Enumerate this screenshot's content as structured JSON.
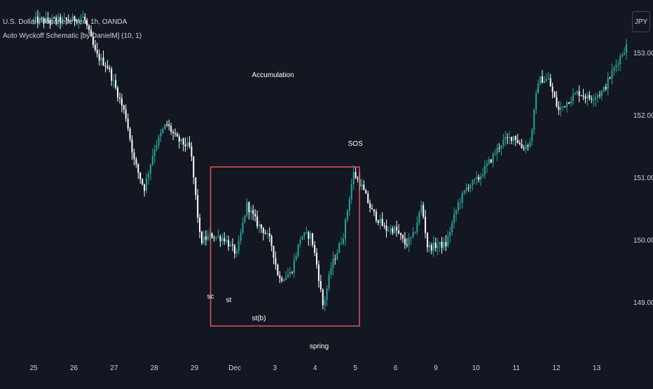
{
  "legend": {
    "symbol": "U.S. Dollar / Japanese Yen, 1h, OANDA",
    "indicator": "Auto Wyckoff Schematic [by DanielM] (10, 1)"
  },
  "currency_badge": "JPY",
  "colors": {
    "background": "#131722",
    "up": "#26a69a",
    "down": "#ffffff",
    "box": "#e05555",
    "text": "#d1d4dc"
  },
  "chart_data": {
    "type": "candlestick",
    "title": "U.S. Dollar / Japanese Yen, 1h, OANDA",
    "y_ticks": [
      153.0,
      152.0,
      151.0,
      150.0,
      149.0
    ],
    "y_tick_labels": [
      "153.000",
      "152.000",
      "151.000",
      "150.000",
      "149.000"
    ],
    "x_ticks": [
      "25",
      "26",
      "27",
      "28",
      "29",
      "Dec",
      "3",
      "4",
      "5",
      "6",
      "9",
      "10",
      "11",
      "12",
      "13"
    ],
    "trading_days": 15,
    "price_path": [
      [
        0.0,
        153.55
      ],
      [
        0.95,
        153.55
      ],
      [
        1.3,
        153.6
      ],
      [
        1.6,
        153.0
      ],
      [
        1.9,
        152.8
      ],
      [
        2.35,
        152.0
      ],
      [
        2.55,
        151.3
      ],
      [
        2.8,
        150.85
      ],
      [
        3.05,
        151.5
      ],
      [
        3.35,
        151.9
      ],
      [
        3.6,
        151.65
      ],
      [
        3.95,
        151.5
      ],
      [
        4.2,
        150.0
      ],
      [
        4.45,
        150.1
      ],
      [
        4.8,
        150.05
      ],
      [
        5.1,
        149.8
      ],
      [
        5.35,
        150.6
      ],
      [
        5.6,
        150.3
      ],
      [
        5.75,
        150.2
      ],
      [
        5.95,
        150.0
      ],
      [
        6.15,
        149.4
      ],
      [
        6.45,
        149.5
      ],
      [
        6.7,
        150.1
      ],
      [
        6.95,
        150.1
      ],
      [
        7.1,
        149.6
      ],
      [
        7.25,
        148.95
      ],
      [
        7.45,
        149.6
      ],
      [
        7.75,
        150.1
      ],
      [
        8.0,
        151.1
      ],
      [
        8.2,
        150.9
      ],
      [
        8.45,
        150.5
      ],
      [
        8.8,
        150.2
      ],
      [
        9.05,
        150.2
      ],
      [
        9.3,
        149.95
      ],
      [
        9.5,
        150.1
      ],
      [
        9.7,
        150.6
      ],
      [
        9.85,
        149.9
      ],
      [
        10.1,
        149.95
      ],
      [
        10.3,
        149.95
      ],
      [
        10.6,
        150.6
      ],
      [
        10.85,
        150.9
      ],
      [
        11.1,
        151.0
      ],
      [
        11.4,
        151.3
      ],
      [
        11.7,
        151.6
      ],
      [
        12.0,
        151.7
      ],
      [
        12.2,
        151.5
      ],
      [
        12.4,
        151.6
      ],
      [
        12.6,
        152.6
      ],
      [
        12.85,
        152.6
      ],
      [
        13.1,
        152.1
      ],
      [
        13.4,
        152.3
      ],
      [
        13.6,
        152.4
      ],
      [
        13.85,
        152.3
      ],
      [
        14.2,
        152.4
      ],
      [
        14.5,
        152.8
      ],
      [
        14.75,
        153.1
      ],
      [
        15.0,
        153.35
      ],
      [
        15.25,
        153.5
      ]
    ],
    "annotations": [
      {
        "label": "Accumulation",
        "day": 5.95,
        "price": 152.65
      },
      {
        "label": "SOS",
        "day": 8.0,
        "price": 151.55
      },
      {
        "label": "sc",
        "day": 4.4,
        "price": 149.1
      },
      {
        "label": "st",
        "day": 4.85,
        "price": 149.05
      },
      {
        "label": "st(b)",
        "day": 5.6,
        "price": 148.75
      },
      {
        "label": "spring",
        "day": 7.1,
        "price": 148.3
      }
    ],
    "box": {
      "day_start": 4.4,
      "day_end": 8.1,
      "price_low": 148.65,
      "price_high": 151.2
    },
    "grid": false
  }
}
